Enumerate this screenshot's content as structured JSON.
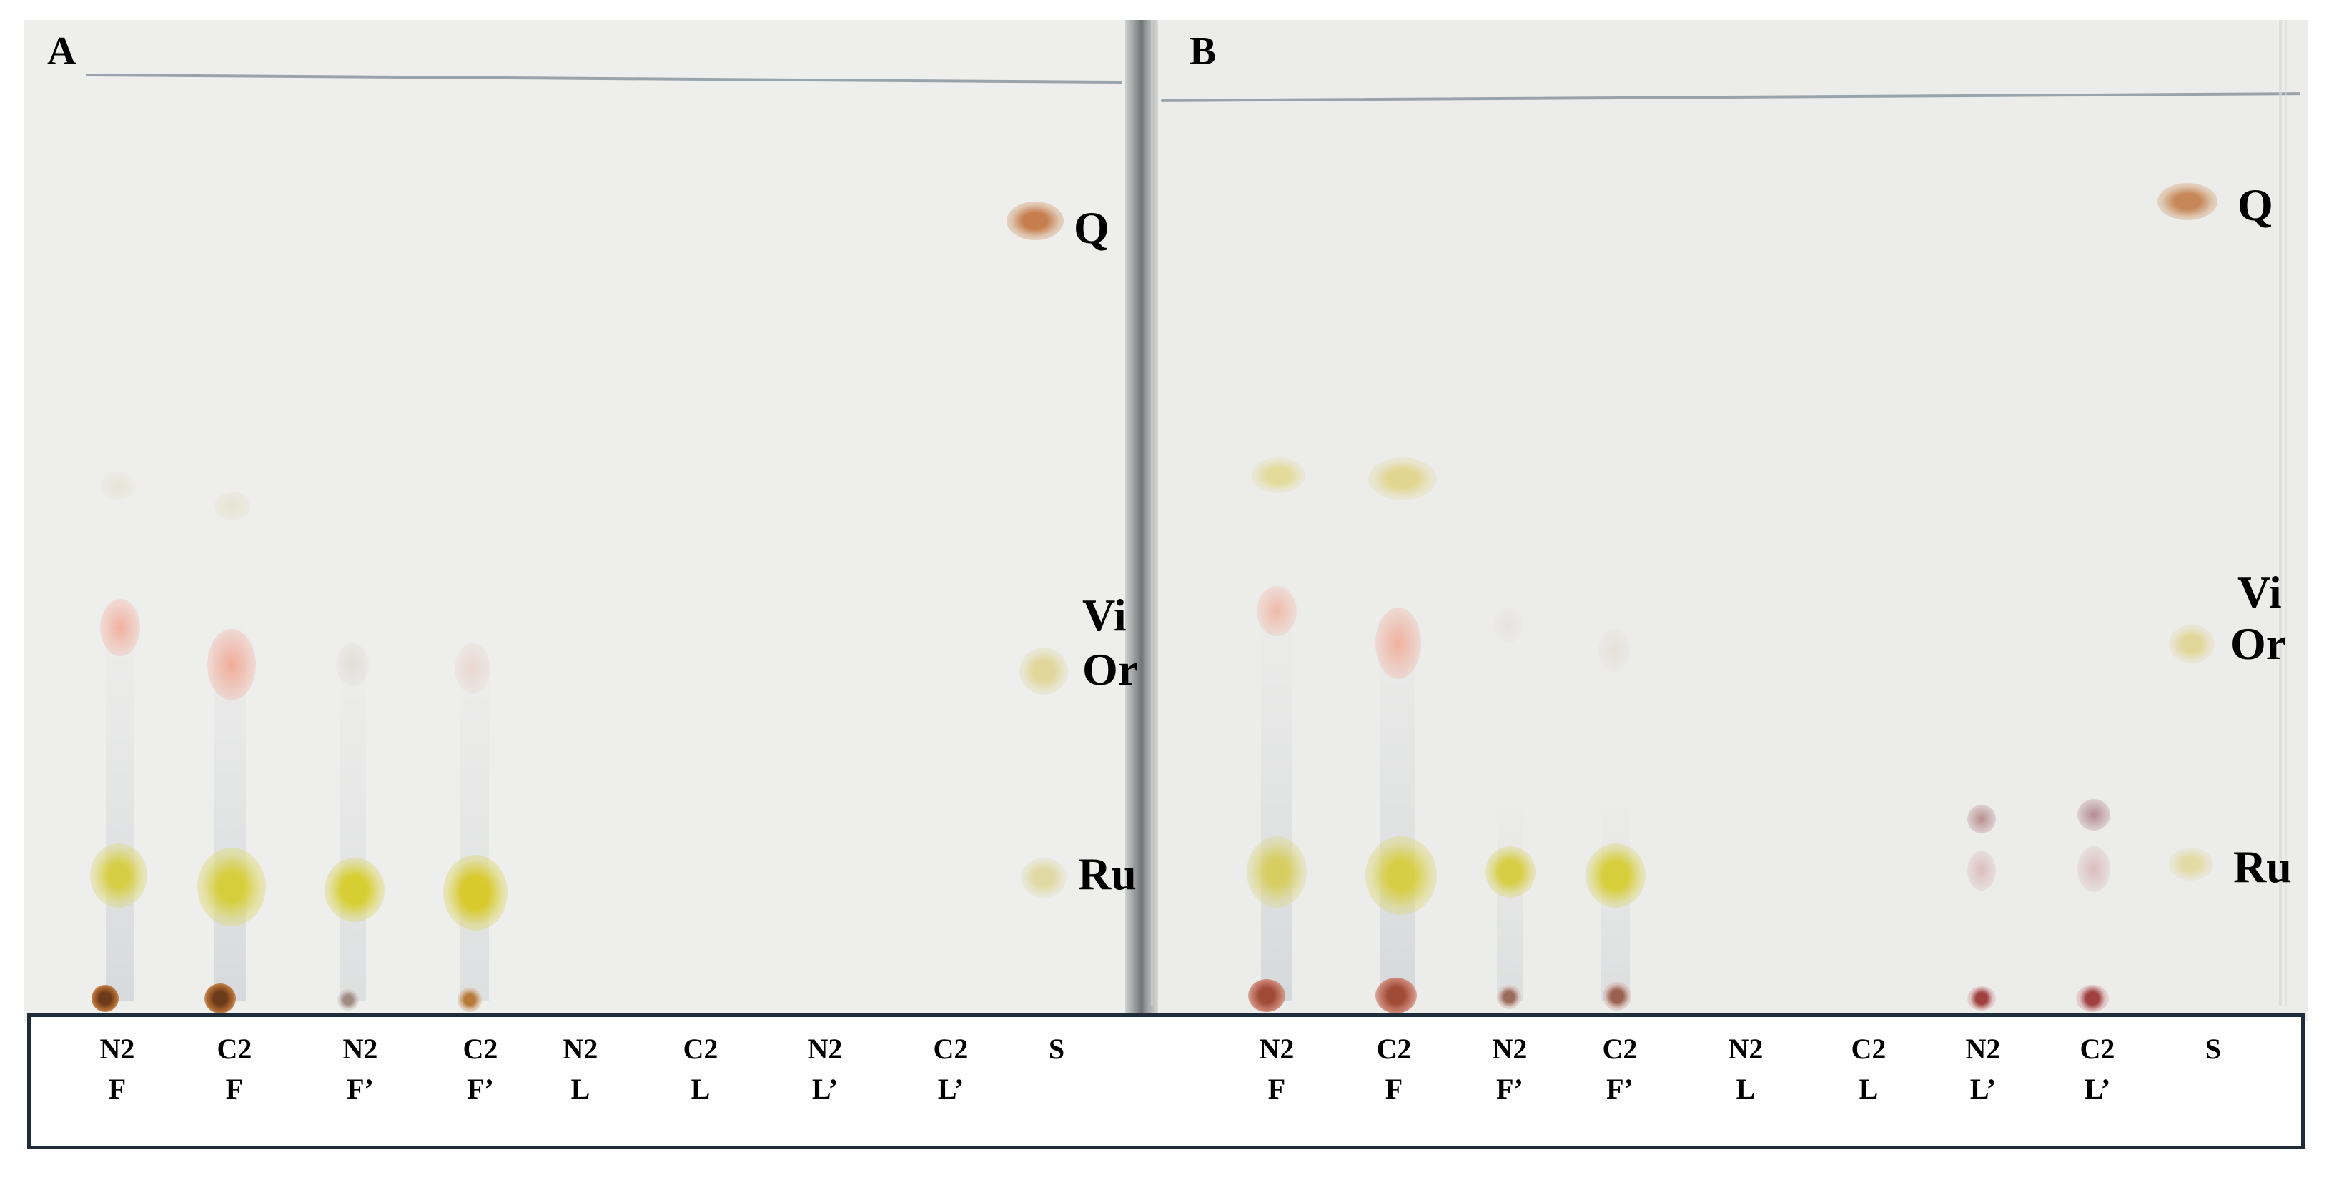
{
  "panels": [
    {
      "letter": "A",
      "standards": {
        "q": "Q",
        "vi": "Vi",
        "or": "Or",
        "ru": "Ru"
      },
      "lanes": [
        {
          "top": "N2",
          "bottom": "F"
        },
        {
          "top": "C2",
          "bottom": "F"
        },
        {
          "top": "N2",
          "bottom": "F’"
        },
        {
          "top": "C2",
          "bottom": "F’"
        },
        {
          "top": "N2",
          "bottom": "L"
        },
        {
          "top": "C2",
          "bottom": "L"
        },
        {
          "top": "N2",
          "bottom": "L’"
        },
        {
          "top": "C2",
          "bottom": "L’"
        },
        {
          "top": "S",
          "bottom": ""
        }
      ]
    },
    {
      "letter": "B",
      "standards": {
        "q": "Q",
        "vi": "Vi",
        "or": "Or",
        "ru": "Ru"
      },
      "lanes": [
        {
          "top": "N2",
          "bottom": "F"
        },
        {
          "top": "C2",
          "bottom": "F"
        },
        {
          "top": "N2",
          "bottom": "F’"
        },
        {
          "top": "C2",
          "bottom": "F’"
        },
        {
          "top": "N2",
          "bottom": "L"
        },
        {
          "top": "C2",
          "bottom": "L"
        },
        {
          "top": "N2",
          "bottom": "L’"
        },
        {
          "top": "C2",
          "bottom": "L’"
        },
        {
          "top": "S",
          "bottom": ""
        }
      ]
    }
  ],
  "colors": {
    "plate": "#eeeeec",
    "quercetin_spot": "#c98a55",
    "rutin_spot": "#d9d040",
    "orange_red_spot": "#f2b6a6",
    "origin_spot": "#b0503a",
    "frame": "#1f2d3a"
  }
}
